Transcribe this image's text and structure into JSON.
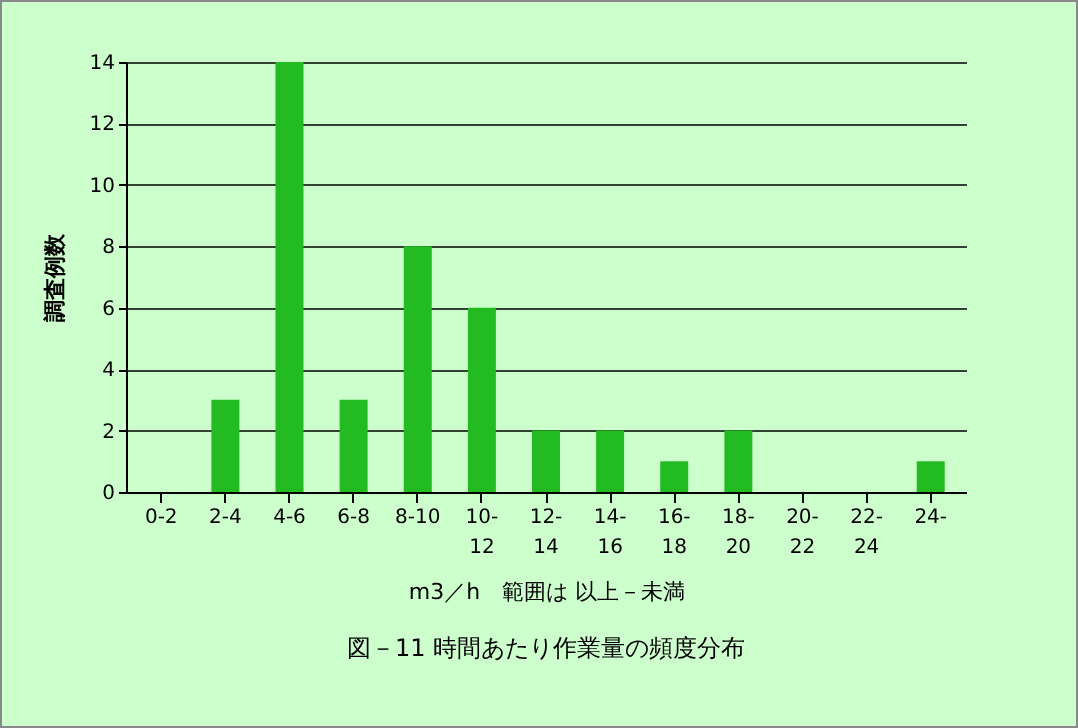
{
  "chart_data": {
    "type": "bar",
    "title": "図－11 時間あたり作業量の頻度分布",
    "xlabel": "m3／h　範囲は 以上－未満",
    "ylabel": "調査例数",
    "categories": [
      "0-2",
      "2-4",
      "4-6",
      "6-8",
      "8-10",
      "10-12",
      "12-14",
      "14-16",
      "16-18",
      "18-20",
      "20-22",
      "22-24",
      "24-"
    ],
    "values": [
      0,
      3,
      14,
      3,
      8,
      6,
      2,
      2,
      1,
      2,
      0,
      0,
      1
    ],
    "color": "#22bb22",
    "ylim": [
      0,
      14
    ],
    "yticks": [
      0,
      2,
      4,
      6,
      8,
      10,
      12,
      14
    ],
    "grid": "y"
  }
}
